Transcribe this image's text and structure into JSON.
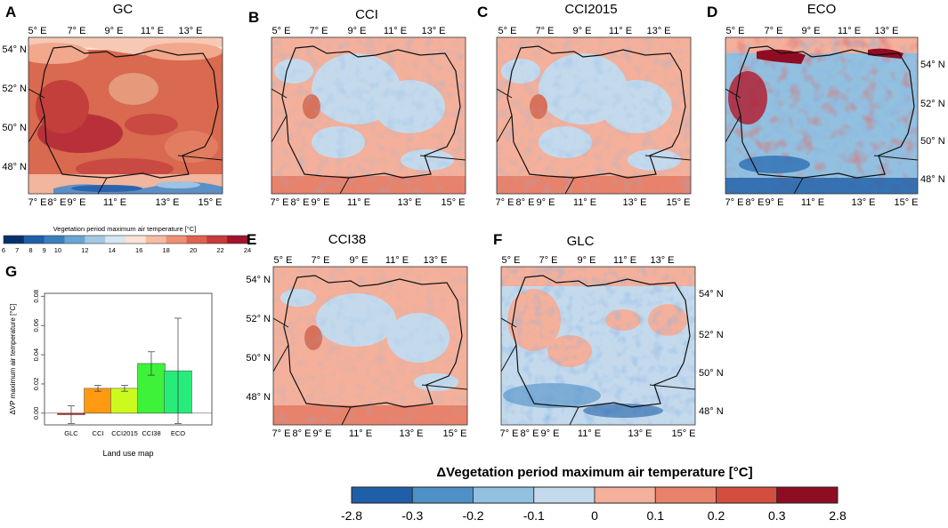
{
  "colors": {
    "warm1": "#f4b09a",
    "warm2": "#e8826a",
    "warm3": "#d34e3f",
    "warm4": "#b2182b",
    "warm5": "#8e0d22",
    "cool1": "#c4daec",
    "cool2": "#92c0df",
    "cool3": "#4f90c6",
    "cool4": "#1f5fa8",
    "gcTop": "#f6c9b5",
    "border": "#111111"
  },
  "panels": [
    {
      "letter": "A",
      "title": "GC",
      "top_ticks": [
        "5° E",
        "7° E",
        "9° E",
        "11° E",
        "13° E"
      ],
      "bottom_ticks": [
        "7° E",
        "8° E",
        "9° E",
        "11° E",
        "13° E",
        "15° E"
      ],
      "side_ticks": [
        "54° N",
        "52° N",
        "50° N",
        "48° N"
      ],
      "side": "left"
    },
    {
      "letter": "B",
      "title": "CCI",
      "top_ticks": [
        "5° E",
        "7° E",
        "9° E",
        "11° E",
        "13° E"
      ],
      "bottom_ticks": [
        "7° E",
        "8° E",
        "9° E",
        "11° E",
        "13° E",
        "15° E"
      ]
    },
    {
      "letter": "C",
      "title": "CCI2015",
      "top_ticks": [
        "5° E",
        "7° E",
        "9° E",
        "11° E",
        "13° E"
      ],
      "bottom_ticks": [
        "7° E",
        "8° E",
        "9° E",
        "11° E",
        "13° E",
        "15° E"
      ]
    },
    {
      "letter": "D",
      "title": "ECO",
      "top_ticks": [
        "5° E",
        "7° E",
        "9° E",
        "11° E",
        "13° E"
      ],
      "bottom_ticks": [
        "7° E",
        "8° E",
        "9° E",
        "11° E",
        "13° E",
        "15° E"
      ],
      "side_ticks": [
        "54° N",
        "52° N",
        "50° N",
        "48° N"
      ],
      "side": "right"
    },
    {
      "letter": "E",
      "title": "CCI38",
      "top_ticks": [
        "5° E",
        "7° E",
        "9° E",
        "11° E",
        "13° E"
      ],
      "bottom_ticks": [
        "7° E",
        "8° E",
        "9° E",
        "11° E",
        "13° E",
        "15° E"
      ],
      "side_ticks": [
        "54° N",
        "52° N",
        "50° N",
        "48° N"
      ],
      "side": "left"
    },
    {
      "letter": "F",
      "title": "GLC",
      "top_ticks": [
        "5° E",
        "7° E",
        "9° E",
        "11° E",
        "13° E"
      ],
      "bottom_ticks": [
        "7° E",
        "8° E",
        "9° E",
        "11° E",
        "13° E",
        "15° E"
      ],
      "side_ticks": [
        "54° N",
        "52° N",
        "50° N",
        "48° N"
      ],
      "side": "right"
    }
  ],
  "gc_colorbar": {
    "title": "Vegetation period maximum air temperature [°C]",
    "ticks": [
      "6",
      "7",
      "8",
      "9",
      "10",
      "12",
      "14",
      "16",
      "18",
      "20",
      "22",
      "24"
    ]
  },
  "delta_colorbar": {
    "title": "ΔVegetation period maximum air temperature [°C]",
    "ticks": [
      "-2.8",
      "-0.3",
      "-0.2",
      "-0.1",
      "0",
      "0.1",
      "0.2",
      "0.3",
      "2.8"
    ]
  },
  "chart_data": {
    "type": "bar",
    "panel_letter": "G",
    "categories": [
      "GLC",
      "CCI",
      "CCI2015",
      "CCI38",
      "ECO"
    ],
    "values": [
      -0.001,
      0.017,
      0.017,
      0.034,
      0.029
    ],
    "error_low": [
      -0.007,
      0.015,
      0.015,
      0.026,
      -0.007
    ],
    "error_high": [
      0.005,
      0.019,
      0.019,
      0.042,
      0.065
    ],
    "colors": [
      "#cc1f1f",
      "#ff9a12",
      "#ccfa1e",
      "#3ef23a",
      "#28ec7a"
    ],
    "xlabel": "Land use map",
    "ylabel": "ΔVP maximum air temperature [°C]",
    "ylim": [
      -0.01,
      0.08
    ],
    "yticks": [
      "0.00",
      "0.02",
      "0.04",
      "0.06",
      "0.08"
    ],
    "ytick_values": [
      0,
      0.02,
      0.04,
      0.06,
      0.08
    ]
  }
}
